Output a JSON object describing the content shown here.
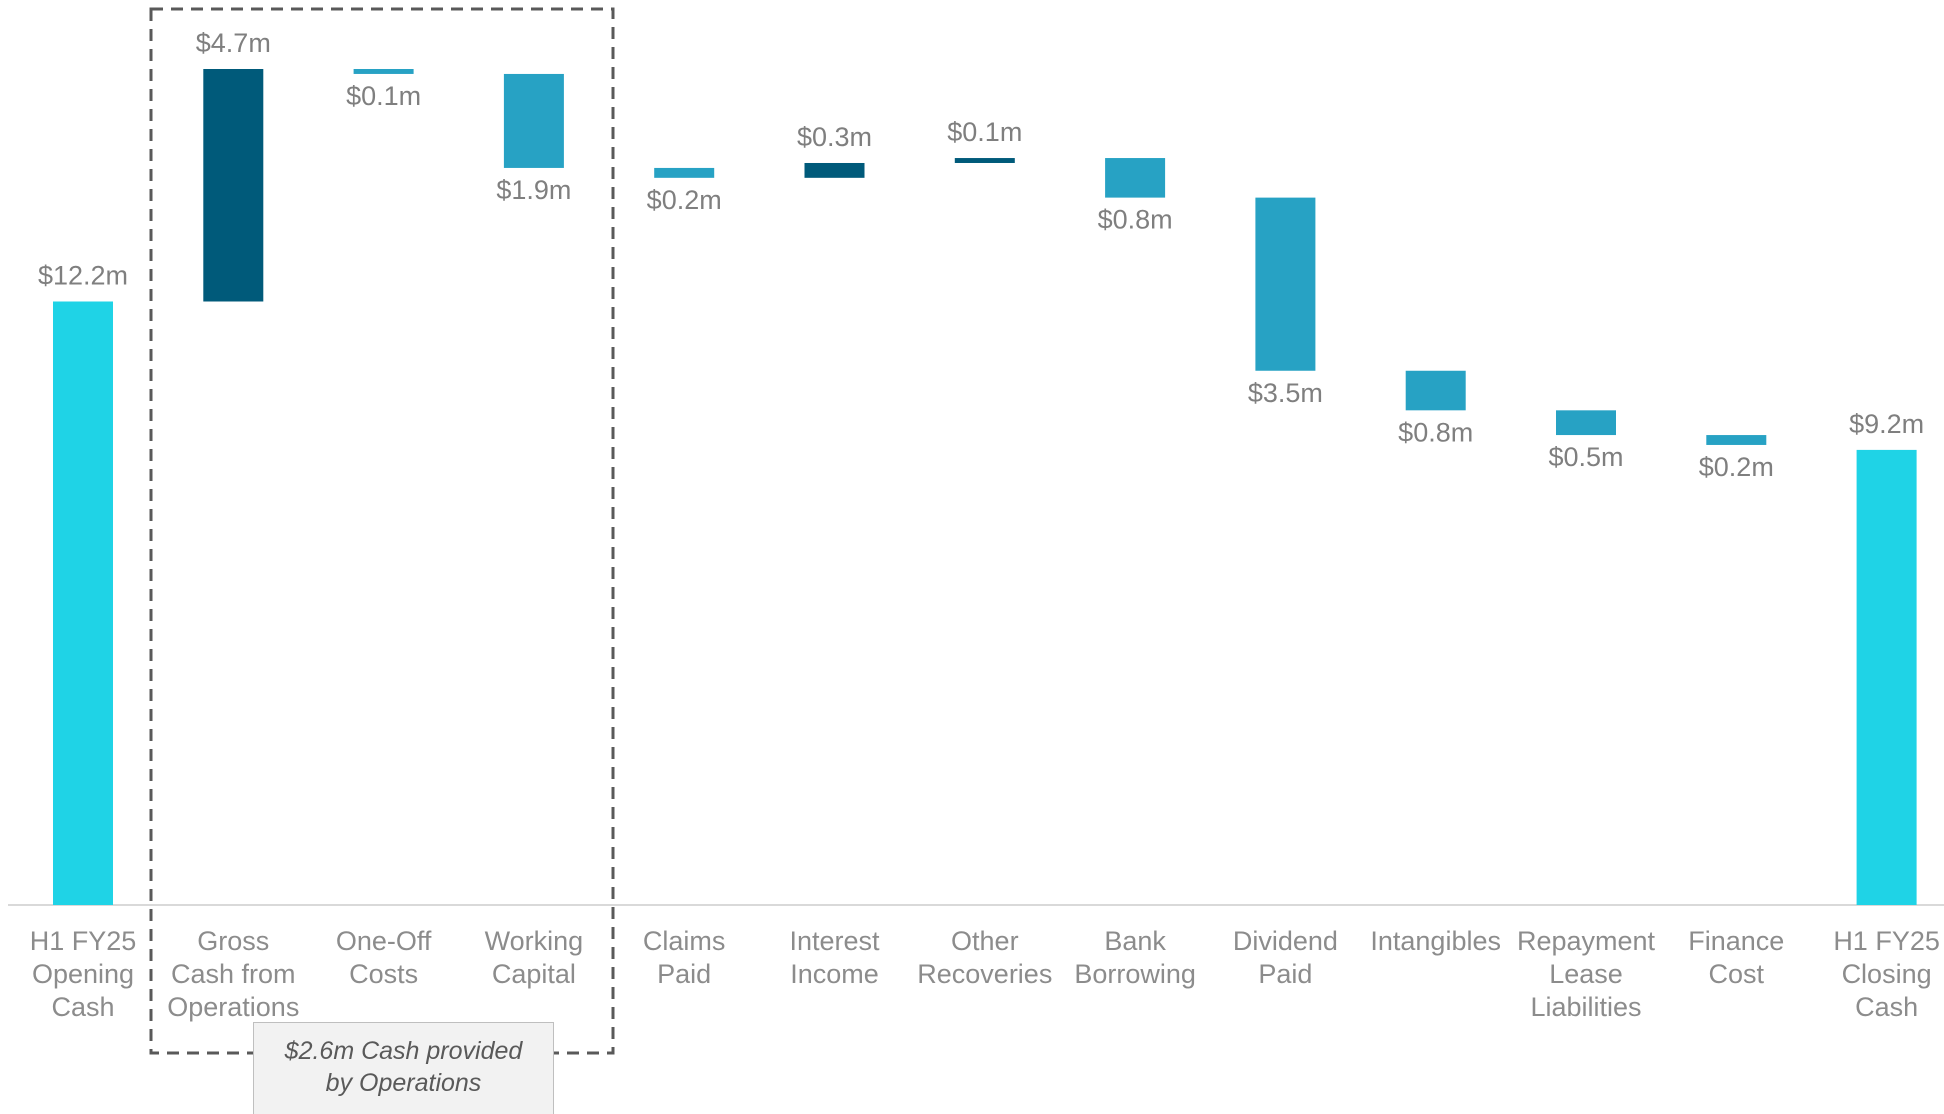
{
  "chart_data": {
    "type": "waterfall",
    "categories": [
      "H1 FY25\nOpening\nCash",
      "Gross\nCash from\nOperations",
      "One-Off\nCosts",
      "Working\nCapital",
      "Claims\nPaid",
      "Interest\nIncome",
      "Other\nRecoveries",
      "Bank\nBorrowing",
      "Dividend\nPaid",
      "Intangibles",
      "Repayment\nLease\nLiabilities",
      "Finance\nCost",
      "H1 FY25\nClosing\nCash"
    ],
    "values": [
      12.2,
      4.7,
      0.1,
      1.9,
      0.2,
      0.3,
      0.1,
      0.8,
      3.5,
      0.8,
      0.5,
      0.2,
      9.2
    ],
    "value_labels": [
      "$12.2m",
      "$4.7m",
      "$0.1m",
      "$1.9m",
      "$0.2m",
      "$0.3m",
      "$0.1m",
      "$0.8m",
      "$3.5m",
      "$0.8m",
      "$0.5m",
      "$0.2m",
      "$9.2m"
    ],
    "kinds": [
      "total",
      "increase",
      "decrease",
      "decrease",
      "decrease",
      "increase",
      "increase",
      "decrease",
      "decrease",
      "decrease",
      "decrease",
      "decrease",
      "total"
    ],
    "colors": {
      "total": "#1fd3e6",
      "increase": "#005a7a",
      "decrease": "#27a2c4"
    },
    "annotation": "$2.6m Cash provided by Operations"
  }
}
